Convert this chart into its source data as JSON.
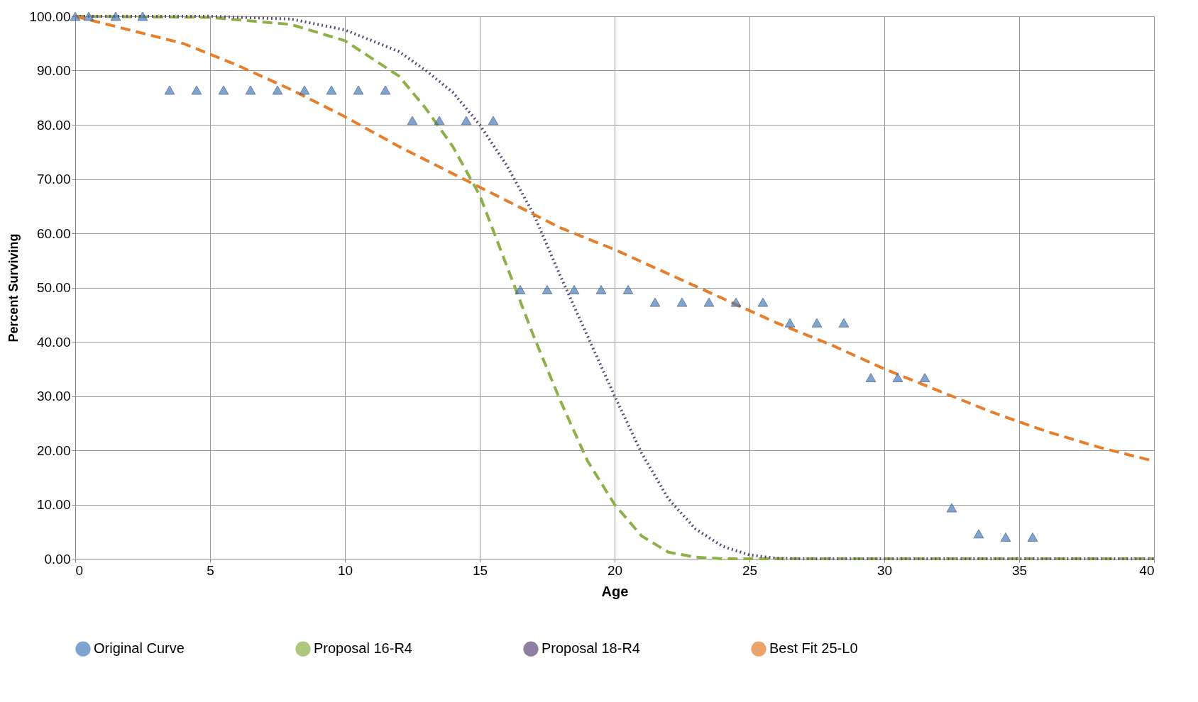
{
  "chart_data": {
    "type": "line",
    "xlabel": "Age",
    "ylabel": "Percent Surviving",
    "xlim": [
      0,
      40
    ],
    "xticks": [
      0,
      5,
      10,
      15,
      20,
      25,
      30,
      35,
      40
    ],
    "ylim": [
      0,
      100
    ],
    "yticks": [
      {
        "value": 0,
        "label": "0.00"
      },
      {
        "value": 10,
        "label": "10.00"
      },
      {
        "value": 20,
        "label": "20.00"
      },
      {
        "value": 30,
        "label": "30.00"
      },
      {
        "value": 40,
        "label": "40.00"
      },
      {
        "value": 50,
        "label": "50.00"
      },
      {
        "value": 60,
        "label": "60.00"
      },
      {
        "value": 70,
        "label": "70.00"
      },
      {
        "value": 80,
        "label": "80.00"
      },
      {
        "value": 90,
        "label": "90.00"
      },
      {
        "value": 100,
        "label": "100.00"
      }
    ],
    "grid": true,
    "legend": "bottom",
    "series": [
      {
        "name": "Original Curve",
        "type": "scatter",
        "marker": "triangle",
        "color": "#4a7ebb",
        "x": [
          0,
          0.5,
          1.5,
          2.5,
          3.5,
          4.5,
          5.5,
          6.5,
          7.5,
          8.5,
          9.5,
          10.5,
          11.5,
          12.5,
          13.5,
          14.5,
          15.5,
          16.5,
          17.5,
          18.5,
          19.5,
          20.5,
          21.5,
          22.5,
          23.5,
          24.5,
          25.5,
          26.5,
          27.5,
          28.5,
          29.5,
          30.5,
          31.5,
          32.5,
          33.5,
          34.5,
          35.5
        ],
        "values": [
          100,
          100,
          100,
          100,
          86.4,
          86.4,
          86.4,
          86.4,
          86.4,
          86.4,
          86.4,
          86.4,
          86.4,
          80.8,
          80.8,
          80.8,
          80.8,
          49.6,
          49.6,
          49.6,
          49.6,
          49.6,
          47.3,
          47.3,
          47.3,
          47.3,
          47.3,
          43.5,
          43.5,
          43.5,
          33.4,
          33.4,
          33.4,
          9.4,
          4.6,
          4.0,
          4.0
        ]
      },
      {
        "name": "Proposal 16-R4",
        "type": "line",
        "line_style": "dashed",
        "color": "#8db049",
        "x": [
          0,
          5,
          8,
          10,
          12,
          13,
          14,
          15,
          16,
          17,
          18,
          19,
          20,
          21,
          22,
          23,
          24,
          26,
          30,
          35,
          40
        ],
        "values": [
          100,
          99.8,
          98.5,
          95.5,
          89,
          83,
          76,
          67,
          54,
          41,
          29,
          18,
          10,
          4.2,
          1.2,
          0.3,
          0,
          0,
          0,
          0,
          0
        ]
      },
      {
        "name": "Proposal 18-R4",
        "type": "line",
        "line_style": "dotted",
        "color": "#604a7b",
        "x": [
          0,
          5,
          8,
          10,
          12,
          13,
          14,
          15,
          16,
          17,
          18,
          19,
          20,
          21,
          22,
          23,
          24,
          25,
          26,
          27,
          30,
          35,
          40
        ],
        "values": [
          100,
          100,
          99.5,
          97.5,
          93.5,
          90,
          86,
          80,
          72.5,
          63.5,
          52,
          41,
          30,
          19.5,
          11,
          5.5,
          2.3,
          0.7,
          0.1,
          0,
          0,
          0,
          0
        ]
      },
      {
        "name": "Best Fit 25-L0",
        "type": "line",
        "line_style": "dashed",
        "color": "#e67e2c",
        "x": [
          0,
          2,
          4,
          6,
          8,
          10,
          12,
          14,
          15,
          16,
          18,
          20,
          22,
          24,
          26,
          28,
          30,
          32,
          34,
          36,
          38,
          40
        ],
        "values": [
          100,
          97.5,
          95,
          91,
          86.5,
          81.5,
          76,
          71,
          68.5,
          66,
          61,
          57,
          52.5,
          48,
          43.5,
          39.5,
          35,
          31,
          27,
          23.5,
          20.5,
          18
        ]
      }
    ]
  }
}
